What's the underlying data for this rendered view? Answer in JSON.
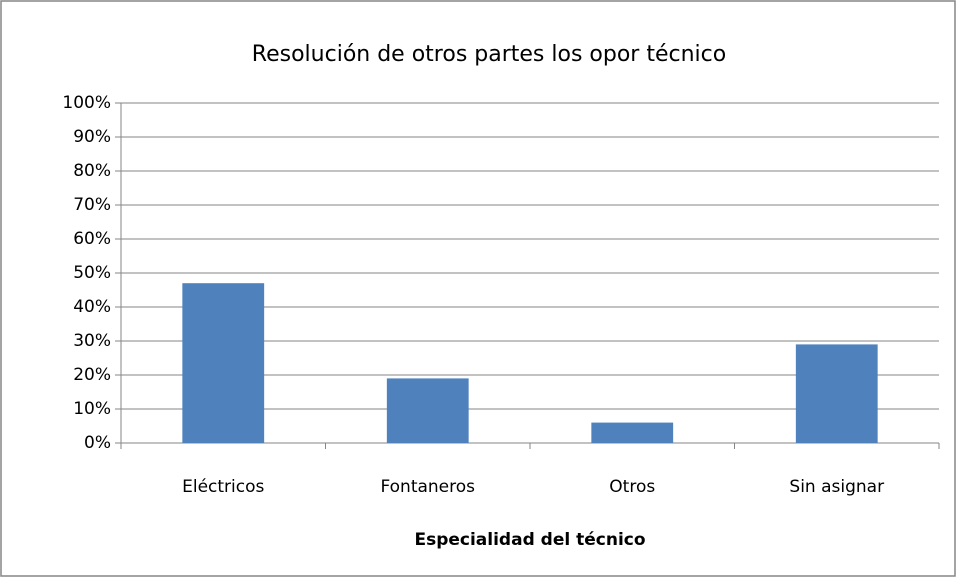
{
  "chart_data": {
    "type": "bar",
    "title": "Resolución de otros partes los opor técnico",
    "x_label": "Especialidad del técnico",
    "categories": [
      "Eléctricos",
      "Fontaneros",
      "Otros",
      "Sin asignar"
    ],
    "values": [
      47,
      19,
      6,
      29
    ],
    "color": "#4f81bd",
    "ylim": [
      0,
      100
    ],
    "yticks": [
      {
        "value": 0,
        "label": "0%"
      },
      {
        "value": 10,
        "label": "10%"
      },
      {
        "value": 20,
        "label": "20%"
      },
      {
        "value": 30,
        "label": "30%"
      },
      {
        "value": 40,
        "label": "40%"
      },
      {
        "value": 50,
        "label": "50%"
      },
      {
        "value": 60,
        "label": "60%"
      },
      {
        "value": 70,
        "label": "70%"
      },
      {
        "value": 80,
        "label": "80%"
      },
      {
        "value": 90,
        "label": "90%"
      },
      {
        "value": 100,
        "label": "100%"
      }
    ],
    "grid": true
  }
}
